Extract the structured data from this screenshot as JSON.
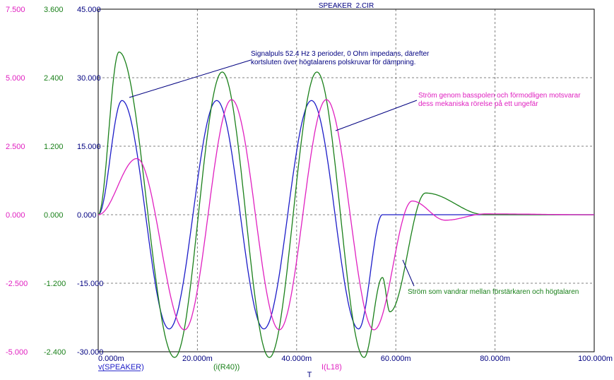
{
  "colors": {
    "speaker": "#1c1cc8",
    "r40": "#1a801a",
    "l18": "#e020c0",
    "axis_blue": "#000080",
    "grid": "#808080"
  },
  "chart_data": {
    "type": "line",
    "title": "SPEAKER_2.CIR",
    "xlabel": "T",
    "x_ticks": [
      "0.000m",
      "20.000m",
      "40.000m",
      "60.000m",
      "80.000m",
      "100.000m"
    ],
    "xlim": [
      0,
      0.1
    ],
    "grid": true,
    "axes": [
      {
        "ticks": [
          "7.500",
          "5.000",
          "2.500",
          "0.000",
          "-2.500",
          "-5.000"
        ],
        "ylim": [
          -5,
          7.5
        ],
        "color": "#e020c0"
      },
      {
        "ticks": [
          "3.600",
          "2.400",
          "1.200",
          "0.000",
          "-1.200",
          "-2.400"
        ],
        "ylim": [
          -2.4,
          3.6
        ],
        "color": "#1a801a"
      },
      {
        "ticks": [
          "45.000",
          "30.000",
          "15.000",
          "0.000",
          "-15.000",
          "-30.000"
        ],
        "ylim": [
          -30,
          45
        ],
        "color": "#000080"
      }
    ],
    "series": [
      {
        "name": "v(SPEAKER)",
        "color": "#1c1cc8",
        "axis": 2,
        "x": [
          0,
          0.0048,
          0.0143,
          0.0239,
          0.0334,
          0.043,
          0.0525,
          0.0573,
          0.06,
          0.1
        ],
        "y": [
          0,
          25,
          -25,
          25,
          -25,
          25,
          -25,
          0,
          0,
          0
        ]
      },
      {
        "name": "(i(R40))",
        "color": "#1a801a",
        "axis": 1,
        "x": [
          0,
          0.0042,
          0.0154,
          0.025,
          0.0345,
          0.0441,
          0.0536,
          0.0573,
          0.0588,
          0.066,
          0.078,
          0.1
        ],
        "y": [
          0,
          2.85,
          -2.5,
          2.5,
          -2.5,
          2.5,
          -2.5,
          -1.1,
          -1.7,
          0.38,
          0,
          0
        ]
      },
      {
        "name": "I(L18)",
        "color": "#e020c0",
        "axis": 0,
        "x": [
          0,
          0.0078,
          0.0174,
          0.0269,
          0.0365,
          0.046,
          0.0556,
          0.0633,
          0.07,
          0.078,
          0.1
        ],
        "y": [
          0,
          2.05,
          -4.2,
          4.2,
          -4.2,
          4.2,
          -4.2,
          0.5,
          -0.2,
          0.03,
          0
        ]
      }
    ],
    "annotations": [
      {
        "lines": [
          "Signalpuls 52.4 Hz 3 perioder, 0 Ohm impedans, därefter",
          "kortsluten över högtalarens polskruvar för dämpning."
        ],
        "color": "#000080"
      },
      {
        "lines": [
          "Ström genom basspolen och förmodligen motsvarar",
          "dess mekaniska rörelse på ett ungefär"
        ],
        "color": "#e020c0"
      },
      {
        "lines": [
          "Ström som vandrar mellan förstärkaren och högtalaren"
        ],
        "color": "#1a801a"
      }
    ]
  }
}
